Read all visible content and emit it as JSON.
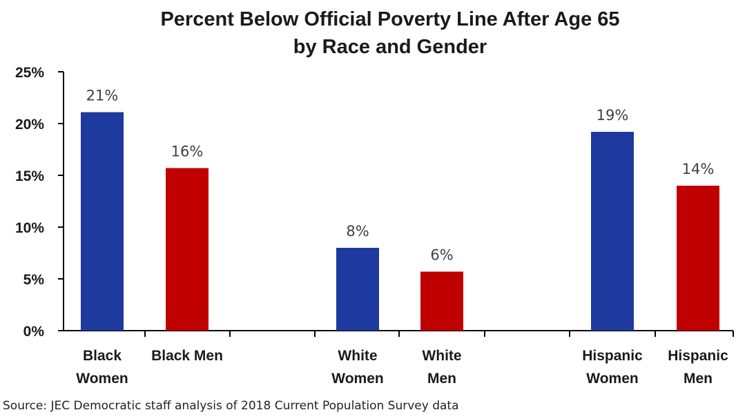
{
  "chart_data": {
    "type": "bar",
    "title": [
      "Percent Below Official Poverty Line After Age 65",
      "by Race and Gender"
    ],
    "xlabel": "",
    "ylabel": "",
    "ylim": [
      0,
      25
    ],
    "yticks": [
      "0%",
      "5%",
      "10%",
      "15%",
      "20%",
      "25%"
    ],
    "ytick_values": [
      0,
      5,
      10,
      15,
      20,
      25
    ],
    "grid": false,
    "legend": "none",
    "groups": [
      "Black",
      "White",
      "Hispanic"
    ],
    "categories": [
      [
        "Black",
        "Women"
      ],
      [
        "Black Men"
      ],
      [
        "White",
        "Women"
      ],
      [
        "White",
        "Men"
      ],
      [
        "Hispanic",
        "Women"
      ],
      [
        "Hispanic",
        "Men"
      ]
    ],
    "values": [
      21.1,
      15.7,
      8.0,
      5.7,
      19.2,
      14.0
    ],
    "data_labels": [
      "21%",
      "16%",
      "8%",
      "6%",
      "19%",
      "14%"
    ],
    "bar_colors": [
      "#1f3a9e",
      "#c00000",
      "#1f3a9e",
      "#c00000",
      "#1f3a9e",
      "#c00000"
    ]
  },
  "source": "Source: JEC Democratic staff analysis of 2018 Current Population Survey data"
}
